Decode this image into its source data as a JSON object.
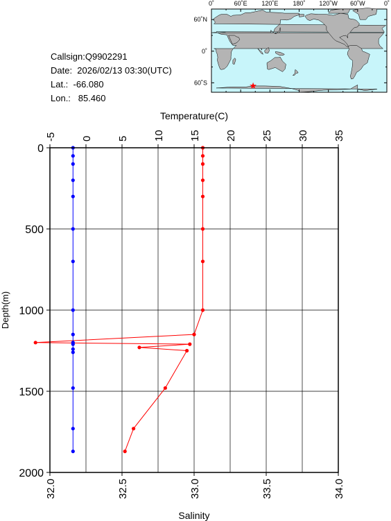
{
  "station": {
    "callsign": "Callsign:Q9902291",
    "date": "Date:  2026/02/13 03:30(UTC)",
    "lat": "Lat.:  -66.080",
    "lon": "Lon.:   85.460"
  },
  "map": {
    "top_labels": [
      "0˚",
      "60˚E",
      "120˚E",
      "180˚",
      "120˚W",
      "60˚W",
      "0˚"
    ],
    "lat_labels": [
      "60˚N",
      "0˚",
      "60˚S"
    ],
    "marker_symbol": "★",
    "colors": {
      "ocean": "#c8f5fa",
      "land": "#b4b4b4",
      "marker": "#ff0000"
    },
    "marker": {
      "lon": 85.46,
      "lat": -66.08
    }
  },
  "chart_data": {
    "type": "line",
    "ylabel": "Depth(m)",
    "top_axis_label": "Temperature(C)",
    "bottom_axis_label": "Salinity",
    "ylim": [
      2000,
      0
    ],
    "yticks": [
      "0",
      "500",
      "1000",
      "1500",
      "2000"
    ],
    "temperature_range": [
      -5,
      35
    ],
    "temperature_ticks": [
      "-5",
      "0",
      "5",
      "10",
      "15",
      "20",
      "25",
      "30",
      "35"
    ],
    "salinity_range": [
      32.0,
      34.0
    ],
    "salinity_ticks": [
      "32.0",
      "32.5",
      "33.0",
      "33.5",
      "34.0"
    ],
    "grid": true,
    "series": [
      {
        "color": "#ff0000",
        "axis": "salinity",
        "depth": [
          0,
          50,
          100,
          200,
          300,
          500,
          700,
          1000,
          1150,
          1200,
          1210,
          1230,
          1250,
          1480,
          1730,
          1870
        ],
        "values": [
          33.06,
          33.06,
          33.06,
          33.06,
          33.06,
          33.06,
          33.06,
          33.06,
          33.0,
          31.9,
          32.97,
          32.62,
          32.95,
          32.8,
          32.58,
          32.52
        ]
      },
      {
        "color": "#0000ff",
        "axis": "temperature",
        "depth": [
          0,
          50,
          100,
          200,
          300,
          500,
          700,
          1000,
          1150,
          1200,
          1210,
          1240,
          1260,
          1480,
          1730,
          1870
        ],
        "values": [
          -1.8,
          -1.8,
          -1.8,
          -1.8,
          -1.8,
          -1.8,
          -1.8,
          -1.8,
          -1.8,
          -1.8,
          -1.8,
          -1.8,
          -1.8,
          -1.8,
          -1.8,
          -1.8
        ]
      }
    ]
  }
}
